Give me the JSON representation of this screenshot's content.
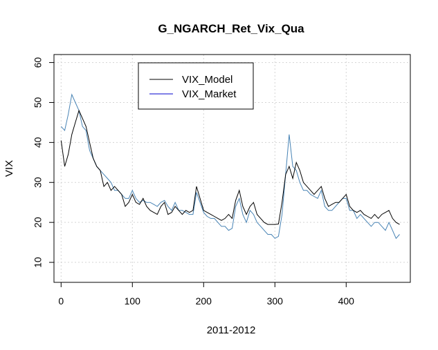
{
  "chart_data": {
    "type": "line",
    "title": "G_NGARCH_Ret_Vix_Qua",
    "xlabel": "2011-2012",
    "ylabel": "VIX",
    "xlim": [
      -10,
      490
    ],
    "ylim": [
      5,
      62
    ],
    "xticks": [
      0,
      100,
      200,
      300,
      400
    ],
    "yticks": [
      10,
      20,
      30,
      40,
      50,
      60
    ],
    "grid": true,
    "legend_position": "top-left",
    "series": [
      {
        "name": "VIX_Model",
        "color": "#000000",
        "x": [
          0,
          5,
          10,
          15,
          20,
          25,
          30,
          35,
          40,
          45,
          50,
          55,
          60,
          65,
          70,
          75,
          80,
          85,
          90,
          95,
          100,
          105,
          110,
          115,
          120,
          125,
          130,
          135,
          140,
          145,
          150,
          155,
          160,
          165,
          170,
          175,
          180,
          185,
          190,
          195,
          200,
          205,
          210,
          215,
          220,
          225,
          230,
          235,
          240,
          245,
          250,
          255,
          260,
          265,
          270,
          275,
          280,
          285,
          290,
          295,
          300,
          305,
          310,
          315,
          320,
          325,
          330,
          335,
          340,
          345,
          350,
          355,
          360,
          365,
          370,
          375,
          380,
          385,
          390,
          395,
          400,
          405,
          410,
          415,
          420,
          425,
          430,
          435,
          440,
          445,
          450,
          455,
          460,
          465,
          470,
          475
        ],
        "values": [
          40.5,
          34,
          37,
          42,
          45,
          48,
          46,
          44,
          40,
          36,
          34,
          33,
          29,
          30,
          28,
          29,
          28,
          27,
          24,
          25,
          27,
          25,
          24.5,
          26,
          24,
          23,
          22.5,
          22,
          24,
          25,
          22,
          22.5,
          24,
          23,
          22,
          23,
          22.5,
          23,
          29,
          26,
          23,
          22.5,
          22,
          21.5,
          21,
          20.5,
          21,
          22,
          21,
          25.5,
          28,
          24,
          22,
          24,
          25,
          22,
          21,
          20,
          19.5,
          19.5,
          19.5,
          19.6,
          25,
          32,
          34,
          31,
          35,
          33,
          30,
          29,
          28,
          27,
          28,
          29,
          26,
          24,
          24.5,
          25,
          25,
          26,
          27,
          24,
          23,
          22.5,
          23,
          22,
          21.5,
          21,
          22,
          21,
          22,
          22.5,
          23,
          21,
          20,
          19.5
        ]
      },
      {
        "name": "VIX_Market",
        "color": "#4682b4",
        "x": [
          0,
          5,
          10,
          15,
          20,
          25,
          30,
          35,
          40,
          45,
          50,
          55,
          60,
          65,
          70,
          75,
          80,
          85,
          90,
          95,
          100,
          105,
          110,
          115,
          120,
          125,
          130,
          135,
          140,
          145,
          150,
          155,
          160,
          165,
          170,
          175,
          180,
          185,
          190,
          195,
          200,
          205,
          210,
          215,
          220,
          225,
          230,
          235,
          240,
          245,
          250,
          255,
          260,
          265,
          270,
          275,
          280,
          285,
          290,
          295,
          300,
          305,
          310,
          315,
          320,
          325,
          330,
          335,
          340,
          345,
          350,
          355,
          360,
          365,
          370,
          375,
          380,
          385,
          390,
          395,
          400,
          405,
          410,
          415,
          420,
          425,
          430,
          435,
          440,
          445,
          450,
          455,
          460,
          465,
          470,
          475
        ],
        "values": [
          44,
          43,
          47,
          52,
          50,
          48,
          44,
          43,
          38,
          36,
          34,
          33,
          32,
          31,
          30,
          28,
          28,
          27,
          26,
          26,
          28,
          26,
          25,
          25.5,
          25,
          25,
          24.5,
          24,
          25,
          25.5,
          24,
          23,
          25,
          23,
          23,
          22.5,
          22,
          22,
          27.5,
          25,
          22.5,
          21.5,
          21,
          21,
          20,
          19,
          19,
          18,
          18.5,
          24,
          26,
          22,
          20,
          23,
          22,
          20,
          19,
          18,
          17,
          17,
          16,
          16.5,
          22,
          32,
          42,
          34,
          33,
          30,
          28,
          28,
          27,
          26.5,
          26,
          28,
          24,
          23,
          23,
          24,
          25,
          26,
          26,
          23,
          23,
          21,
          22,
          21,
          20,
          19,
          20,
          20,
          19,
          18,
          20,
          18,
          16,
          17
        ]
      }
    ]
  }
}
